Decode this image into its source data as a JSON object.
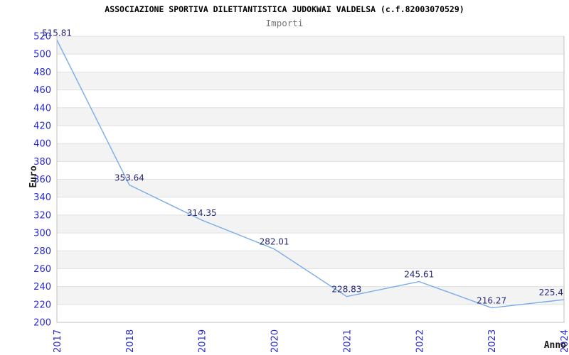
{
  "header": {
    "title": "ASSOCIAZIONE SPORTIVA DILETTANTISTICA JUDOKWAI VALDELSA (c.f.82003070529)",
    "subtitle": "Importi"
  },
  "chart_data": {
    "type": "line",
    "title": "Importi",
    "categories": [
      "2017",
      "2018",
      "2019",
      "2020",
      "2021",
      "2022",
      "2023",
      "2024"
    ],
    "values": [
      515.81,
      353.64,
      314.35,
      282.01,
      228.83,
      245.61,
      216.27,
      225.4
    ],
    "point_labels": [
      "515.81",
      "353.64",
      "314.35",
      "282.01",
      "228.83",
      "245.61",
      "216.27",
      "225.4"
    ],
    "xlabel": "Anno",
    "ylabel": "Euro",
    "ylim": [
      200,
      520
    ],
    "ytick_step": 20,
    "grid": "horizontal-bands-alternating",
    "legend": "none",
    "colors": {
      "line": "#78abe8",
      "tick_labels": "#2929d6",
      "point_labels": "#252775",
      "band": "#f3f3f3",
      "gridline": "#e0e0e0",
      "axis_border": "#c2c2c2",
      "title": "#000000",
      "subtitle": "#757575"
    }
  }
}
